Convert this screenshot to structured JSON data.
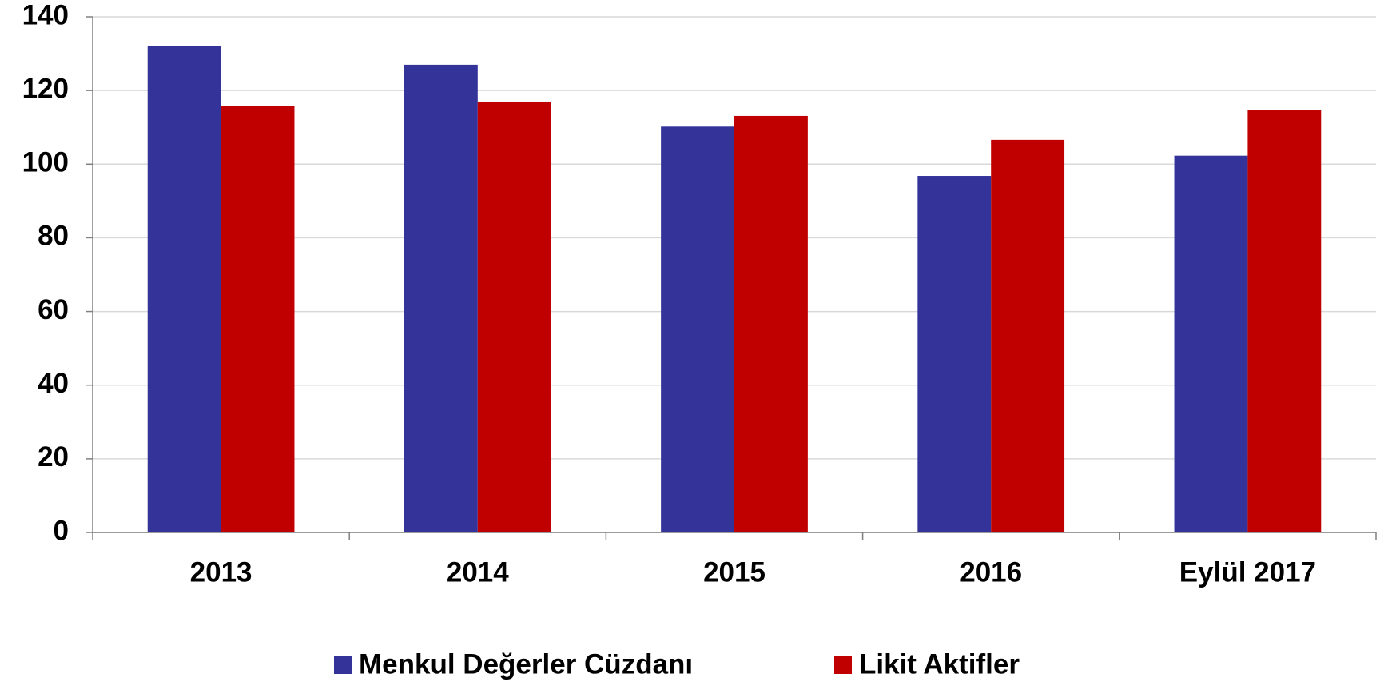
{
  "chart_data": {
    "type": "bar",
    "categories": [
      "2013",
      "2014",
      "2015",
      "2016",
      "Eylül 2017"
    ],
    "series": [
      {
        "name": "Menkul Değerler Cüzdanı",
        "color": "#333399",
        "values": [
          132,
          127,
          110.2,
          96.8,
          102.3
        ]
      },
      {
        "name": "Likit Aktifler",
        "color": "#c00000",
        "values": [
          115.8,
          117,
          113.1,
          106.6,
          114.6
        ]
      }
    ],
    "ylim": [
      0,
      140
    ],
    "yticks": [
      0,
      20,
      40,
      60,
      80,
      100,
      120,
      140
    ],
    "grid": true,
    "legend": "bottom"
  }
}
